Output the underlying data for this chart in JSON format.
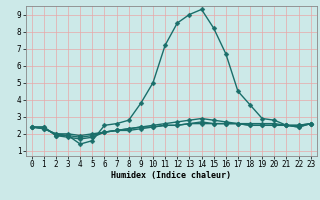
{
  "xlabel": "Humidex (Indice chaleur)",
  "xlim": [
    -0.5,
    23.5
  ],
  "ylim": [
    0.7,
    9.5
  ],
  "yticks": [
    1,
    2,
    3,
    4,
    5,
    6,
    7,
    8,
    9
  ],
  "xticks": [
    0,
    1,
    2,
    3,
    4,
    5,
    6,
    7,
    8,
    9,
    10,
    11,
    12,
    13,
    14,
    15,
    16,
    17,
    18,
    19,
    20,
    21,
    22,
    23
  ],
  "bg_color": "#cce9e8",
  "line_color": "#1a6e6a",
  "grid_color": "#e8a8a8",
  "lines": [
    {
      "x": [
        0,
        1,
        2,
        3,
        4,
        5,
        6,
        7,
        8,
        9,
        10,
        11,
        12,
        13,
        14,
        15,
        16,
        17,
        18,
        19,
        20,
        21,
        22,
        23
      ],
      "y": [
        2.4,
        2.4,
        1.9,
        1.9,
        1.4,
        1.6,
        2.5,
        2.6,
        2.8,
        3.8,
        5.0,
        7.2,
        8.5,
        9.0,
        9.3,
        8.2,
        6.7,
        4.5,
        3.7,
        2.9,
        2.8,
        2.5,
        2.4,
        2.6
      ]
    },
    {
      "x": [
        0,
        1,
        2,
        3,
        4,
        5,
        6,
        7,
        8,
        9,
        10,
        11,
        12,
        13,
        14,
        15,
        16,
        17,
        18,
        19,
        20,
        21,
        22,
        23
      ],
      "y": [
        2.4,
        2.4,
        1.9,
        1.8,
        1.7,
        1.8,
        2.1,
        2.2,
        2.3,
        2.4,
        2.5,
        2.6,
        2.7,
        2.8,
        2.9,
        2.8,
        2.7,
        2.6,
        2.6,
        2.6,
        2.6,
        2.5,
        2.5,
        2.6
      ]
    },
    {
      "x": [
        0,
        1,
        2,
        3,
        4,
        5,
        6,
        7,
        8,
        9,
        10,
        11,
        12,
        13,
        14,
        15,
        16,
        17,
        18,
        19,
        20,
        21,
        22,
        23
      ],
      "y": [
        2.4,
        2.3,
        2.0,
        2.0,
        1.9,
        2.0,
        2.1,
        2.2,
        2.3,
        2.4,
        2.4,
        2.5,
        2.5,
        2.6,
        2.7,
        2.6,
        2.6,
        2.6,
        2.5,
        2.5,
        2.5,
        2.5,
        2.5,
        2.6
      ]
    },
    {
      "x": [
        0,
        1,
        2,
        3,
        4,
        5,
        6,
        7,
        8,
        9,
        10,
        11,
        12,
        13,
        14,
        15,
        16,
        17,
        18,
        19,
        20,
        21,
        22,
        23
      ],
      "y": [
        2.4,
        2.3,
        2.0,
        1.9,
        1.8,
        1.9,
        2.1,
        2.2,
        2.2,
        2.3,
        2.4,
        2.5,
        2.5,
        2.6,
        2.6,
        2.6,
        2.6,
        2.6,
        2.5,
        2.5,
        2.5,
        2.5,
        2.4,
        2.6
      ]
    }
  ],
  "linewidth": 1.0,
  "markersize": 2.5,
  "axis_fontsize": 6,
  "tick_fontsize": 5.5
}
